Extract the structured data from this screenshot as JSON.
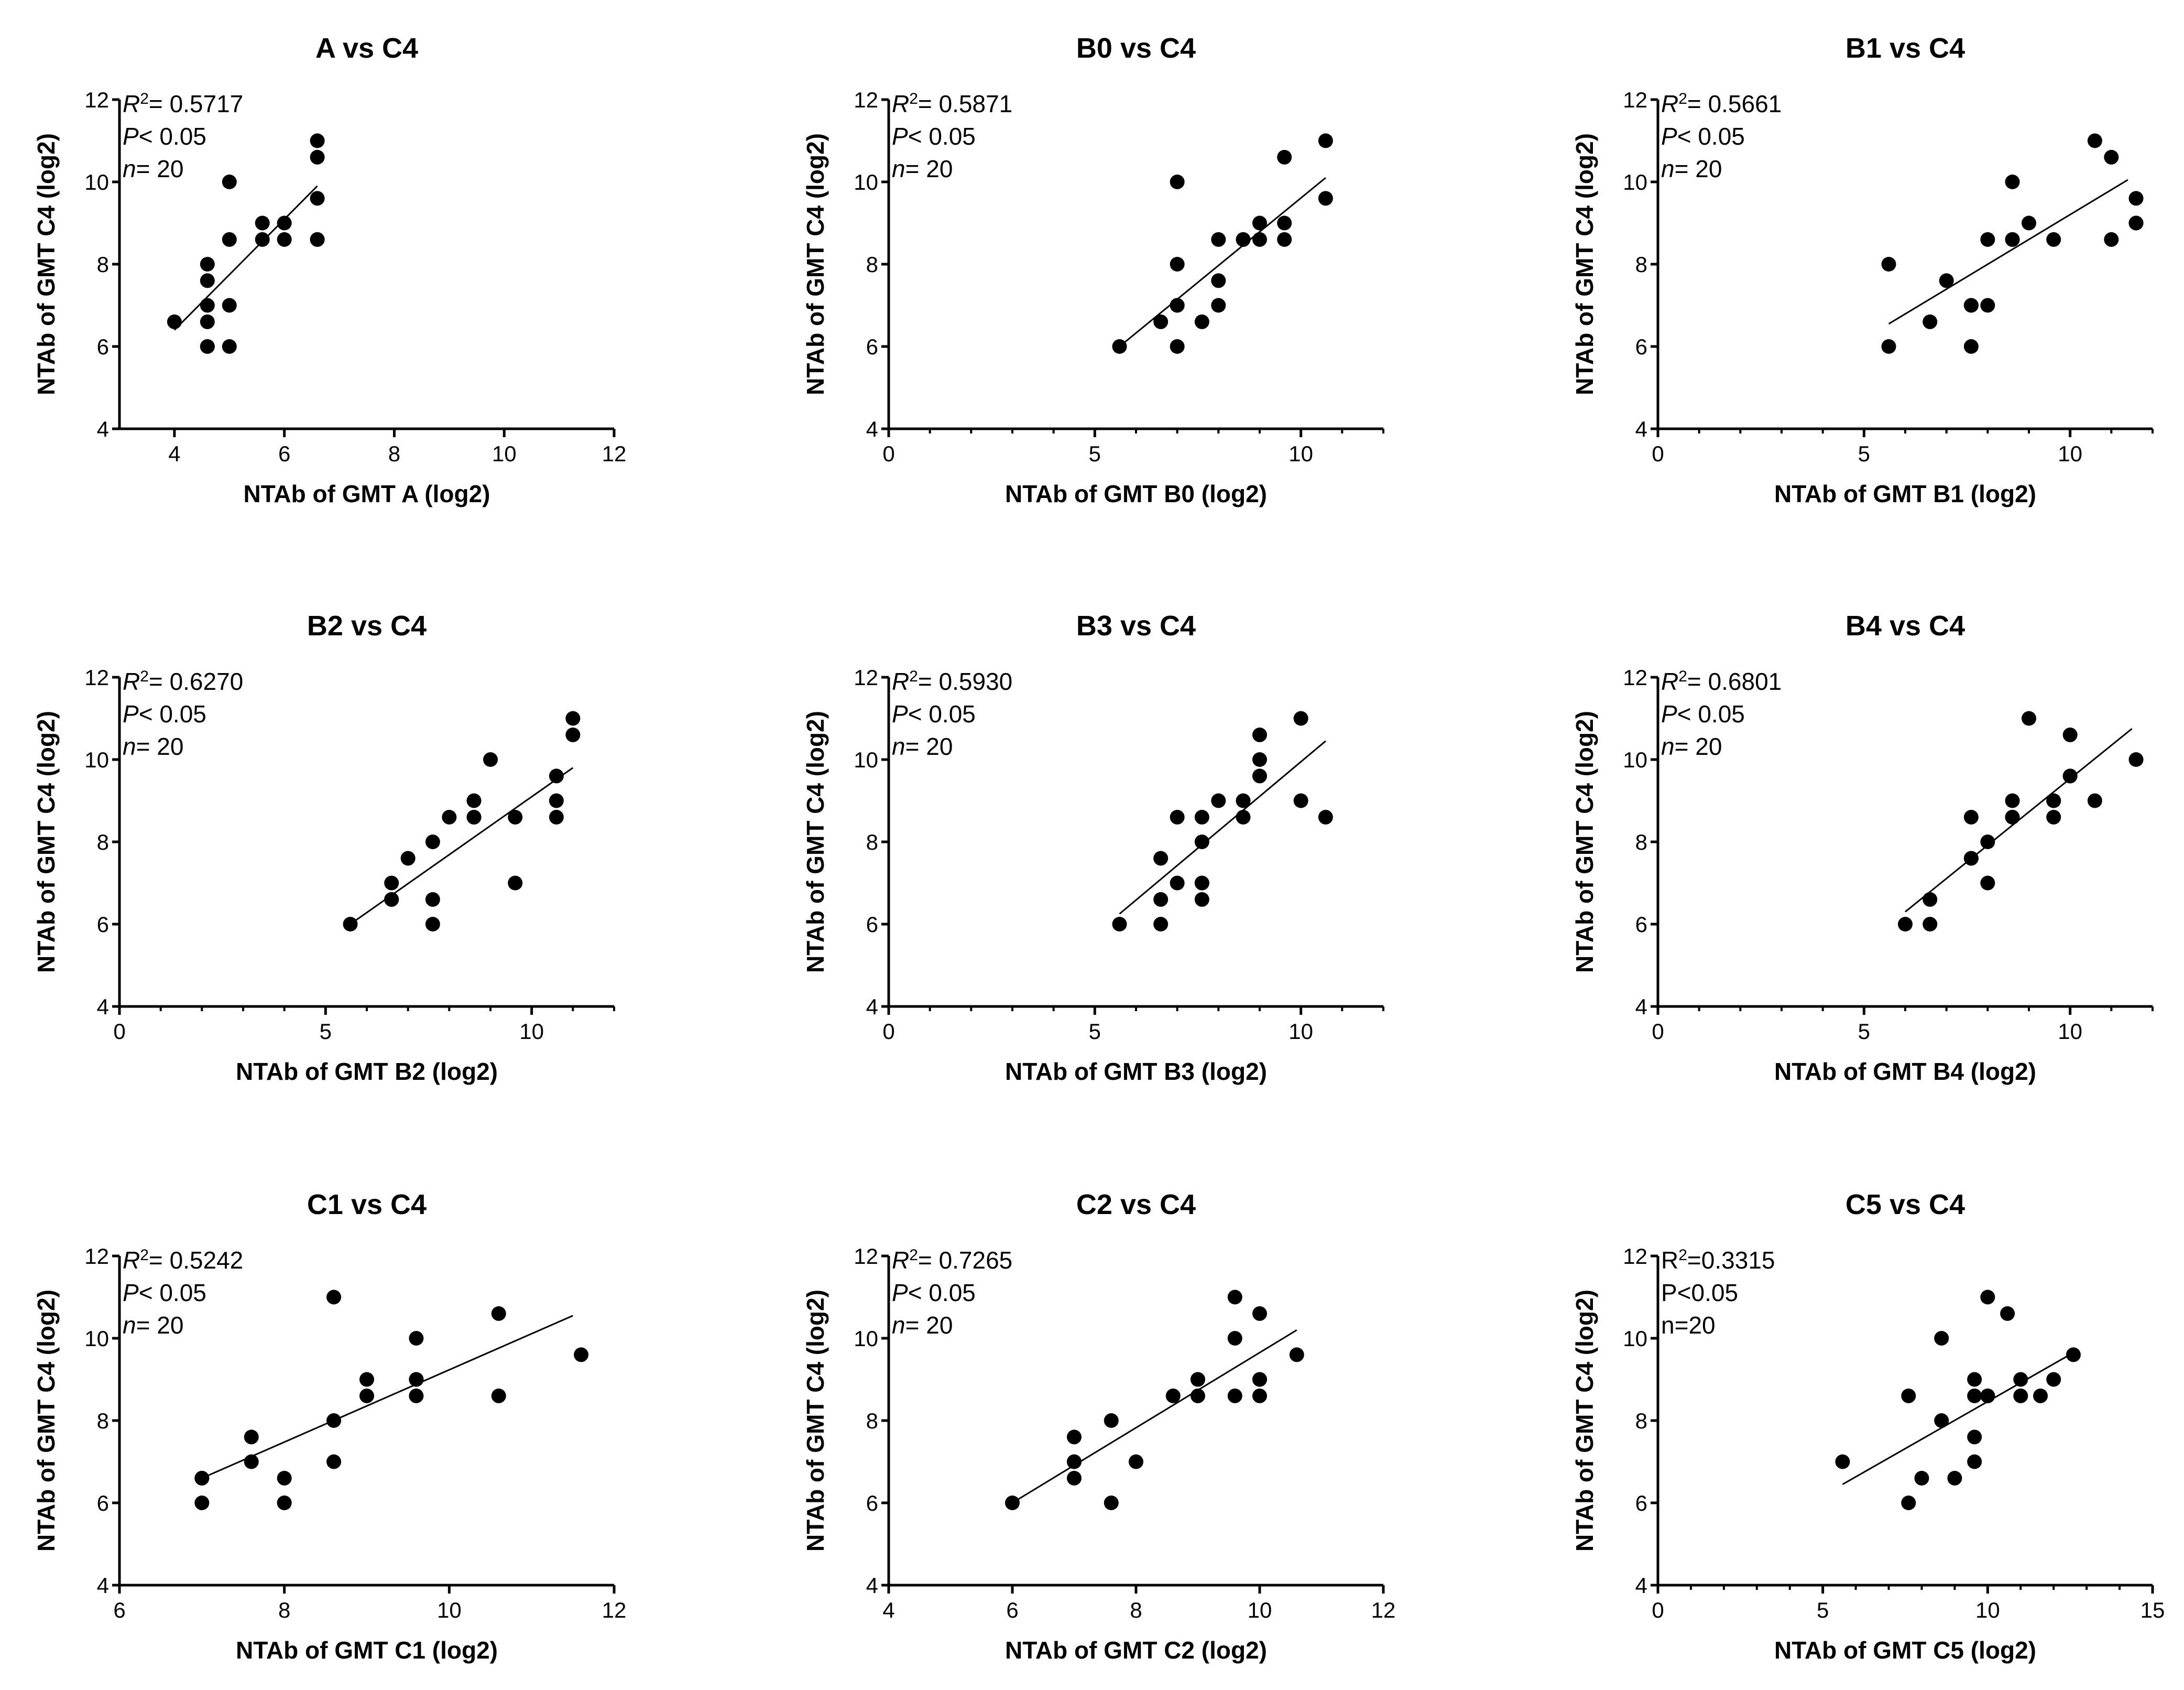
{
  "figure": {
    "description_panels": 9
  },
  "chart_data": [
    {
      "type": "scatter",
      "title": "A vs C4",
      "xlabel": "NTAb of GMT A (log2)",
      "ylabel": "NTAb of GMT C4 (log2)",
      "xlim": [
        3,
        12
      ],
      "xticks": [
        4,
        6,
        8,
        10,
        12
      ],
      "ylim": [
        4,
        12
      ],
      "yticks": [
        4,
        6,
        8,
        10,
        12
      ],
      "stats": {
        "r2_prefix": "R",
        "r2_sup": "2",
        "r2_value": "= 0.5717",
        "p_prefix": "P",
        "p_value": "< 0.05",
        "n_prefix": "n",
        "n_value": "= 20",
        "italic": true
      },
      "x": [
        4.0,
        4.6,
        4.6,
        4.6,
        4.6,
        4.6,
        4.6,
        5.0,
        5.0,
        5.0,
        5.0,
        5.6,
        5.6,
        6.0,
        6.0,
        6.6,
        6.6,
        6.6,
        6.6,
        6.6
      ],
      "y": [
        6.6,
        8.0,
        7.6,
        7.0,
        6.6,
        6.0,
        6.0,
        10.0,
        8.6,
        7.0,
        6.0,
        9.0,
        8.6,
        9.0,
        8.6,
        11.0,
        10.6,
        9.6,
        8.6,
        8.6
      ],
      "fit": {
        "x": [
          4.0,
          6.6
        ],
        "y": [
          6.4,
          9.9
        ]
      }
    },
    {
      "type": "scatter",
      "title": "B0 vs C4",
      "xlabel": "NTAb of GMT B0 (log2)",
      "ylabel": "NTAb of GMT C4 (log2)",
      "xlim": [
        0,
        12
      ],
      "xticks": [
        0,
        5,
        10
      ],
      "xminor": 1,
      "ylim": [
        4,
        12
      ],
      "yticks": [
        4,
        6,
        8,
        10,
        12
      ],
      "stats": {
        "r2_prefix": "R",
        "r2_sup": "2",
        "r2_value": "= 0.5871",
        "p_prefix": "P",
        "p_value": "< 0.05",
        "n_prefix": "n",
        "n_value": "= 20",
        "italic": true
      },
      "x": [
        5.6,
        6.6,
        7.0,
        7.0,
        7.0,
        7.0,
        7.6,
        8.0,
        8.0,
        8.0,
        8.6,
        8.6,
        9.0,
        9.0,
        9.6,
        9.6,
        9.6,
        10.6,
        10.6,
        7.0
      ],
      "y": [
        6.0,
        6.6,
        7.0,
        6.0,
        8.0,
        10.0,
        6.6,
        7.0,
        7.6,
        8.6,
        8.6,
        8.6,
        8.6,
        9.0,
        9.0,
        8.6,
        10.6,
        11.0,
        9.6,
        7.0
      ],
      "fit": {
        "x": [
          5.6,
          10.6
        ],
        "y": [
          6.0,
          10.1
        ]
      }
    },
    {
      "type": "scatter",
      "title": "B1 vs C4",
      "xlabel": "NTAb of GMT B1 (log2)",
      "ylabel": "NTAb of GMT C4 (log2)",
      "xlim": [
        0,
        12
      ],
      "xticks": [
        0,
        5,
        10
      ],
      "xminor": 1,
      "ylim": [
        4,
        12
      ],
      "yticks": [
        4,
        6,
        8,
        10,
        12
      ],
      "stats": {
        "r2_prefix": "R",
        "r2_sup": "2",
        "r2_value": "= 0.5661",
        "p_prefix": "P",
        "p_value": "< 0.05",
        "n_prefix": "n",
        "n_value": "= 20",
        "italic": true
      },
      "x": [
        5.6,
        5.6,
        6.6,
        7.0,
        7.6,
        7.6,
        8.0,
        8.0,
        8.6,
        8.6,
        9.0,
        9.6,
        10.6,
        11.0,
        11.0,
        11.6,
        11.6,
        8.6,
        7.6,
        11.6
      ],
      "y": [
        8.0,
        6.0,
        6.6,
        7.6,
        7.0,
        6.0,
        7.0,
        8.6,
        8.6,
        10.0,
        9.0,
        8.6,
        11.0,
        10.6,
        8.6,
        9.6,
        9.0,
        8.6,
        7.0,
        9.0
      ],
      "fit": {
        "x": [
          5.6,
          11.4
        ],
        "y": [
          6.55,
          10.05
        ]
      }
    },
    {
      "type": "scatter",
      "title": "B2 vs C4",
      "xlabel": "NTAb of GMT B2 (log2)",
      "ylabel": "NTAb of GMT C4 (log2)",
      "xlim": [
        0,
        12
      ],
      "xticks": [
        0,
        5,
        10
      ],
      "xminor": 1,
      "ylim": [
        4,
        12
      ],
      "yticks": [
        4,
        6,
        8,
        10,
        12
      ],
      "stats": {
        "r2_prefix": "R",
        "r2_sup": "2",
        "r2_value": "= 0.6270",
        "p_prefix": "P",
        "p_value": "< 0.05",
        "n_prefix": "n",
        "n_value": "= 20",
        "italic": true
      },
      "x": [
        5.6,
        6.6,
        6.6,
        7.0,
        7.6,
        7.6,
        7.6,
        8.0,
        8.6,
        8.6,
        9.0,
        9.6,
        9.6,
        10.6,
        10.6,
        10.6,
        11.0,
        11.0,
        8.6,
        6.6
      ],
      "y": [
        6.0,
        7.0,
        6.6,
        7.6,
        8.0,
        6.6,
        6.0,
        8.6,
        8.6,
        9.0,
        10.0,
        8.6,
        7.0,
        9.6,
        9.0,
        8.6,
        11.0,
        10.6,
        8.6,
        6.6
      ],
      "fit": {
        "x": [
          5.6,
          11.0
        ],
        "y": [
          6.0,
          9.8
        ]
      }
    },
    {
      "type": "scatter",
      "title": "B3 vs C4",
      "xlabel": "NTAb of GMT B3 (log2)",
      "ylabel": "NTAb of GMT C4 (log2)",
      "xlim": [
        0,
        12
      ],
      "xticks": [
        0,
        5,
        10
      ],
      "xminor": 1,
      "ylim": [
        4,
        12
      ],
      "yticks": [
        4,
        6,
        8,
        10,
        12
      ],
      "stats": {
        "r2_prefix": "R",
        "r2_sup": "2",
        "r2_value": "= 0.5930",
        "p_prefix": "P",
        "p_value": "< 0.05",
        "n_prefix": "n",
        "n_value": "= 20",
        "italic": true
      },
      "x": [
        5.6,
        6.6,
        6.6,
        6.6,
        7.0,
        7.0,
        7.6,
        7.6,
        7.6,
        7.6,
        8.0,
        8.6,
        8.6,
        9.0,
        9.0,
        9.0,
        10.0,
        10.0,
        10.6,
        7.6
      ],
      "y": [
        6.0,
        7.6,
        6.6,
        6.0,
        8.6,
        7.0,
        8.6,
        8.0,
        7.0,
        6.6,
        9.0,
        9.0,
        8.6,
        10.6,
        10.0,
        9.6,
        11.0,
        9.0,
        8.6,
        7.0
      ],
      "fit": {
        "x": [
          5.6,
          10.6
        ],
        "y": [
          6.25,
          10.45
        ]
      }
    },
    {
      "type": "scatter",
      "title": "B4 vs C4",
      "xlabel": "NTAb of GMT B4 (log2)",
      "ylabel": "NTAb of GMT C4 (log2)",
      "xlim": [
        0,
        12
      ],
      "xticks": [
        0,
        5,
        10
      ],
      "xminor": 1,
      "ylim": [
        4,
        12
      ],
      "yticks": [
        4,
        6,
        8,
        10,
        12
      ],
      "stats": {
        "r2_prefix": "R",
        "r2_sup": "2",
        "r2_value": "= 0.6801",
        "p_prefix": "P",
        "p_value": "< 0.05",
        "n_prefix": "n",
        "n_value": "= 20",
        "italic": true
      },
      "x": [
        6.0,
        6.6,
        6.6,
        7.6,
        7.6,
        8.0,
        8.0,
        8.6,
        8.6,
        9.0,
        9.6,
        9.6,
        10.0,
        10.0,
        10.6,
        11.6,
        8.6,
        9.6,
        7.6,
        10.0
      ],
      "y": [
        6.0,
        6.6,
        6.0,
        8.6,
        7.6,
        8.0,
        7.0,
        9.0,
        8.6,
        11.0,
        9.0,
        8.6,
        10.6,
        9.6,
        9.0,
        10.0,
        8.6,
        9.0,
        7.6,
        9.6
      ],
      "fit": {
        "x": [
          6.0,
          11.5
        ],
        "y": [
          6.3,
          10.75
        ]
      }
    },
    {
      "type": "scatter",
      "title": "C1 vs C4",
      "xlabel": "NTAb of GMT C1 (log2)",
      "ylabel": "NTAb of GMT C4 (log2)",
      "xlim": [
        6,
        12
      ],
      "xticks": [
        6,
        8,
        10,
        12
      ],
      "ylim": [
        4,
        12
      ],
      "yticks": [
        4,
        6,
        8,
        10,
        12
      ],
      "stats": {
        "r2_prefix": "R",
        "r2_sup": "2",
        "r2_value": "= 0.5242",
        "p_prefix": "P",
        "p_value": "< 0.05",
        "n_prefix": "n",
        "n_value": "= 20",
        "italic": true
      },
      "x": [
        7.0,
        7.0,
        7.6,
        7.6,
        8.0,
        8.0,
        8.6,
        8.6,
        8.6,
        9.0,
        9.0,
        9.6,
        9.6,
        9.6,
        10.6,
        10.6,
        11.6,
        7.0,
        8.0,
        9.6
      ],
      "y": [
        6.6,
        6.0,
        7.6,
        7.0,
        6.6,
        6.0,
        11.0,
        8.0,
        7.0,
        9.0,
        8.6,
        10.0,
        9.0,
        8.6,
        10.6,
        8.6,
        9.6,
        6.6,
        6.0,
        9.0
      ],
      "fit": {
        "x": [
          7.0,
          11.5
        ],
        "y": [
          6.6,
          10.55
        ]
      }
    },
    {
      "type": "scatter",
      "title": "C2 vs C4",
      "xlabel": "NTAb of GMT C2 (log2)",
      "ylabel": "NTAb of GMT C4 (log2)",
      "xlim": [
        4,
        12
      ],
      "xticks": [
        4,
        6,
        8,
        10,
        12
      ],
      "ylim": [
        4,
        12
      ],
      "yticks": [
        4,
        6,
        8,
        10,
        12
      ],
      "stats": {
        "r2_prefix": "R",
        "r2_sup": "2",
        "r2_value": "= 0.7265",
        "p_prefix": "P",
        "p_value": "< 0.05",
        "n_prefix": "n",
        "n_value": "= 20",
        "italic": true
      },
      "x": [
        6.0,
        7.0,
        7.0,
        7.0,
        7.6,
        7.6,
        8.0,
        8.6,
        9.0,
        9.0,
        9.6,
        9.6,
        9.6,
        10.0,
        10.0,
        10.0,
        10.6,
        9.0,
        7.0,
        10.0
      ],
      "y": [
        6.0,
        7.6,
        7.0,
        6.6,
        8.0,
        6.0,
        7.0,
        8.6,
        9.0,
        8.6,
        11.0,
        10.0,
        8.6,
        10.6,
        9.0,
        8.6,
        9.6,
        9.0,
        7.0,
        9.0
      ],
      "fit": {
        "x": [
          6.0,
          10.6
        ],
        "y": [
          6.0,
          10.2
        ]
      }
    },
    {
      "type": "scatter",
      "title": "C5 vs C4",
      "xlabel": "NTAb of GMT C5 (log2)",
      "ylabel": "NTAb of GMT C4 (log2)",
      "xlim": [
        0,
        15
      ],
      "xticks": [
        0,
        5,
        10,
        15
      ],
      "xminor": 1,
      "ylim": [
        4,
        12
      ],
      "yticks": [
        4,
        6,
        8,
        10,
        12
      ],
      "stats": {
        "r2_prefix": "R",
        "r2_sup": "2",
        "r2_value": "=0.3315",
        "p_prefix": "P",
        "p_value": "<0.05",
        "n_prefix": "n",
        "n_value": "=20",
        "italic": false
      },
      "x": [
        5.6,
        7.6,
        7.6,
        8.0,
        8.6,
        8.6,
        9.0,
        9.6,
        9.6,
        9.6,
        9.6,
        10.0,
        10.0,
        10.6,
        11.0,
        11.0,
        11.6,
        12.0,
        12.6,
        10.0
      ],
      "y": [
        7.0,
        8.6,
        6.0,
        6.6,
        10.0,
        8.0,
        6.6,
        9.0,
        7.6,
        7.0,
        8.6,
        11.0,
        8.6,
        10.6,
        9.0,
        8.6,
        8.6,
        9.0,
        9.6,
        8.6
      ],
      "fit": {
        "x": [
          5.6,
          12.6
        ],
        "y": [
          6.45,
          9.65
        ]
      }
    }
  ]
}
